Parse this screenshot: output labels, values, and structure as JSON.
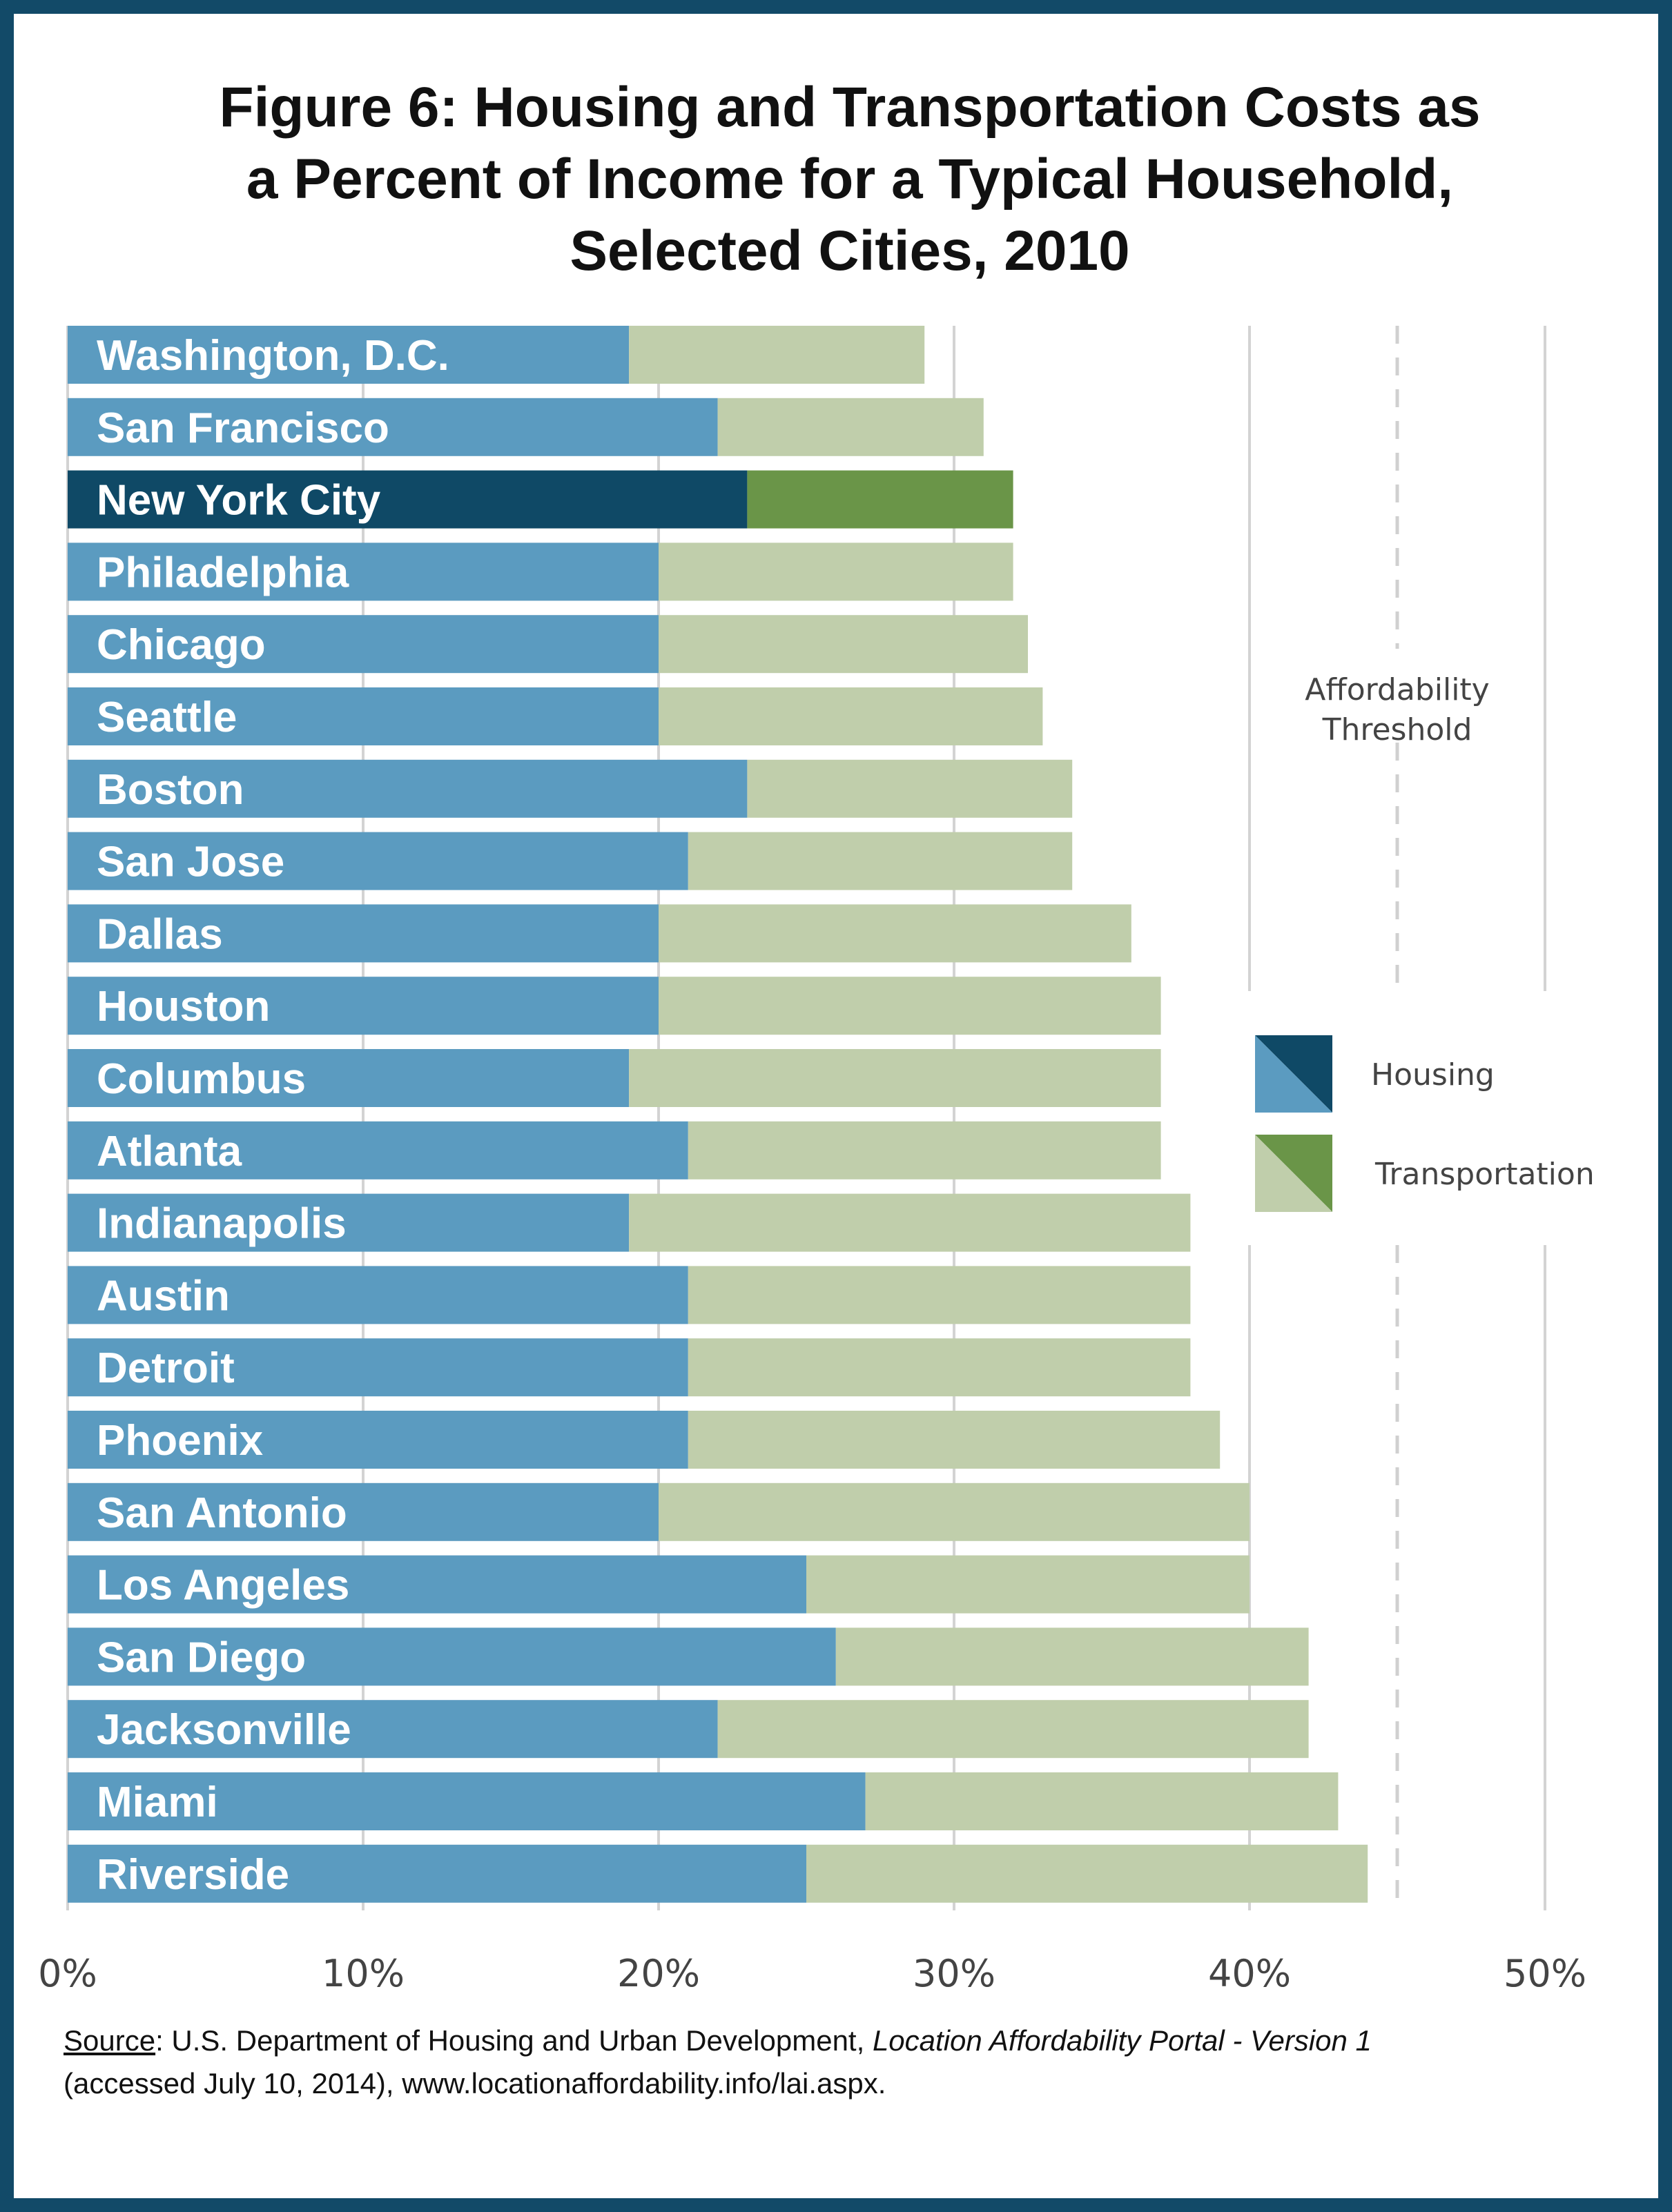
{
  "colors": {
    "housing": "#5b9bc0",
    "transportation": "#c0ceab",
    "nyc_housing": "#0f4966",
    "nyc_transportation": "#6a9548",
    "grid": "#d3d3d3",
    "threshold": "#d0d0d0",
    "frame": "#124a68"
  },
  "chart_data": {
    "type": "bar",
    "orientation": "horizontal",
    "stacked": true,
    "title": "Figure 6: Housing and Transportation Costs as a Percent of Income for a Typical Household, Selected Cities, 2010",
    "title_lines": [
      "Figure 6: Housing and Transportation Costs as",
      "a Percent of Income for a Typical Household,",
      "Selected Cities, 2010"
    ],
    "categories": [
      "Washington, D.C.",
      "San Francisco",
      "New York City",
      "Philadelphia",
      "Chicago",
      "Seattle",
      "Boston",
      "San Jose",
      "Dallas",
      "Houston",
      "Columbus",
      "Atlanta",
      "Indianapolis",
      "Austin",
      "Detroit",
      "Phoenix",
      "San Antonio",
      "Los Angeles",
      "San Diego",
      "Jacksonville",
      "Miami",
      "Riverside"
    ],
    "highlight": "New York City",
    "series": [
      {
        "name": "Housing",
        "values": [
          19,
          22,
          23,
          20,
          20,
          20,
          23,
          21,
          20,
          20,
          19,
          21,
          19,
          21,
          21,
          21,
          20,
          25,
          26,
          22,
          27,
          25
        ]
      },
      {
        "name": "Transportation",
        "values": [
          10,
          9,
          9,
          12,
          12.5,
          13,
          11,
          13,
          16,
          17,
          18,
          16,
          19,
          17,
          17,
          18,
          20,
          15,
          16,
          20,
          16,
          19
        ]
      }
    ],
    "xlim": [
      0,
      50
    ],
    "xticks": [
      0,
      10,
      20,
      30,
      40,
      50
    ],
    "xtick_labels": [
      "0%",
      "10%",
      "20%",
      "30%",
      "40%",
      "50%"
    ],
    "threshold": {
      "value": 45,
      "label_lines": [
        "Affordability",
        "Threshold"
      ]
    },
    "legend": {
      "position": "right",
      "entries": [
        "Housing",
        "Transportation"
      ]
    },
    "grid": true
  },
  "source": {
    "prefix": "Source",
    "text": ": U.S. Department of Housing and Urban Development, ",
    "italic": "Location Affordability Portal - Version 1",
    "line2": "(accessed July 10, 2014),  www.locationaffordability.info/lai.aspx."
  }
}
